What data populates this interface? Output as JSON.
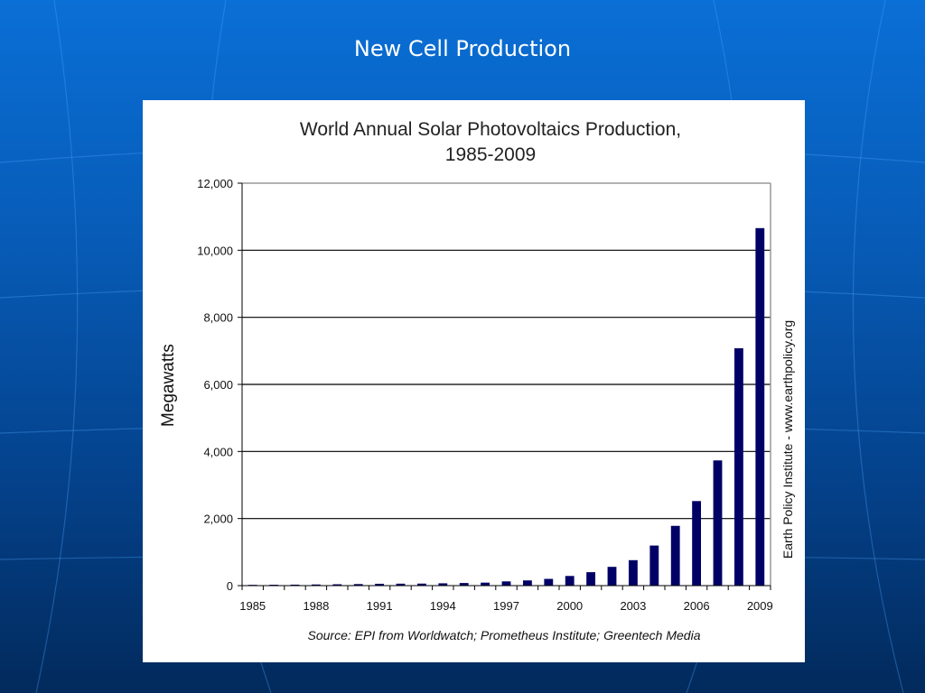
{
  "slide": {
    "title": "New Cell Production"
  },
  "chart_data": {
    "type": "bar",
    "title": "World Annual Solar Photovoltaics Production,",
    "subtitle": "1985-2009",
    "xlabel": "",
    "ylabel": "Megawatts",
    "side_label": "Earth Policy Institute - www.earthpolicy.org",
    "source": "Source: EPI from Worldwatch; Prometheus Institute; Greentech Media",
    "ylim": [
      0,
      12000
    ],
    "yticks": [
      0,
      2000,
      4000,
      6000,
      8000,
      10000,
      12000
    ],
    "ytick_labels": [
      "0",
      "2,000",
      "4,000",
      "6,000",
      "8,000",
      "10,000",
      "12,000"
    ],
    "xtick_labels": [
      "1985",
      "1988",
      "1991",
      "1994",
      "1997",
      "2000",
      "2003",
      "2006",
      "2009"
    ],
    "grid": true,
    "colors": {
      "bar": "#000066",
      "grid": "#000000",
      "frame": "#999999"
    },
    "categories": [
      "1985",
      "1986",
      "1987",
      "1988",
      "1989",
      "1990",
      "1991",
      "1992",
      "1993",
      "1994",
      "1995",
      "1996",
      "1997",
      "1998",
      "1999",
      "2000",
      "2001",
      "2002",
      "2003",
      "2004",
      "2005",
      "2006",
      "2007",
      "2008",
      "2009"
    ],
    "values": [
      23,
      26,
      29,
      34,
      40,
      46,
      55,
      58,
      60,
      69,
      78,
      89,
      126,
      155,
      201,
      288,
      401,
      560,
      759,
      1195,
      1782,
      2521,
      3733,
      7079,
      10660
    ]
  }
}
